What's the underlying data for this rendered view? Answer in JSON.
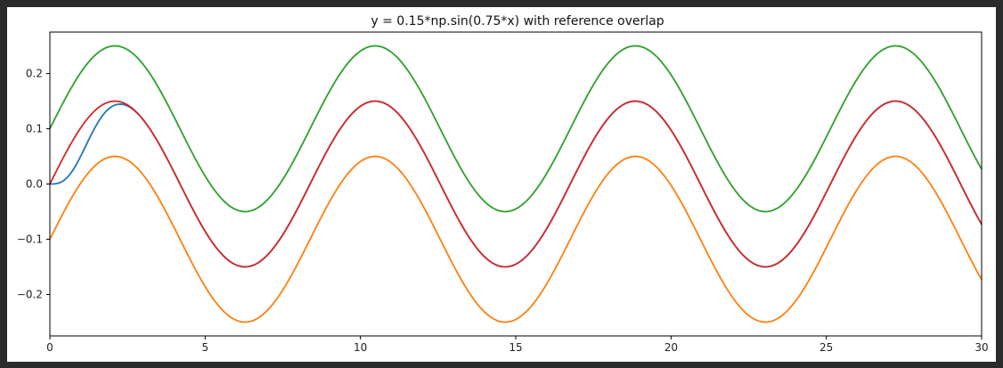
{
  "chart_data": {
    "type": "line",
    "title": "y = 0.15*np.sin(0.75*x) with reference overlap",
    "xlabel": "",
    "ylabel": "",
    "xlim": [
      0,
      30
    ],
    "ylim": [
      -0.275,
      0.275
    ],
    "grid": false,
    "x_ticks": [
      0,
      5,
      10,
      15,
      20,
      25,
      30
    ],
    "x_tick_labels": [
      "0",
      "5",
      "10",
      "15",
      "20",
      "25",
      "30"
    ],
    "y_ticks": [
      -0.2,
      -0.1,
      0.0,
      0.1,
      0.2
    ],
    "y_tick_labels": [
      "−0.2",
      "−0.1",
      "0.0",
      "0.1",
      "0.2"
    ],
    "x_step": 0.25,
    "x_range": [
      0,
      30
    ],
    "series": [
      {
        "color": "#1f77b4",
        "formula": "0.15*sin(0.75*x), amplitude ramps up from 0 near x=0"
      },
      {
        "color": "#ff7f0e",
        "formula": "0.15*sin(0.75*x) - 0.1"
      },
      {
        "color": "#2ca02c",
        "formula": "0.15*sin(0.75*x) + 0.1"
      },
      {
        "color": "#d62728",
        "formula": "0.15*sin(0.75*x)"
      }
    ]
  }
}
